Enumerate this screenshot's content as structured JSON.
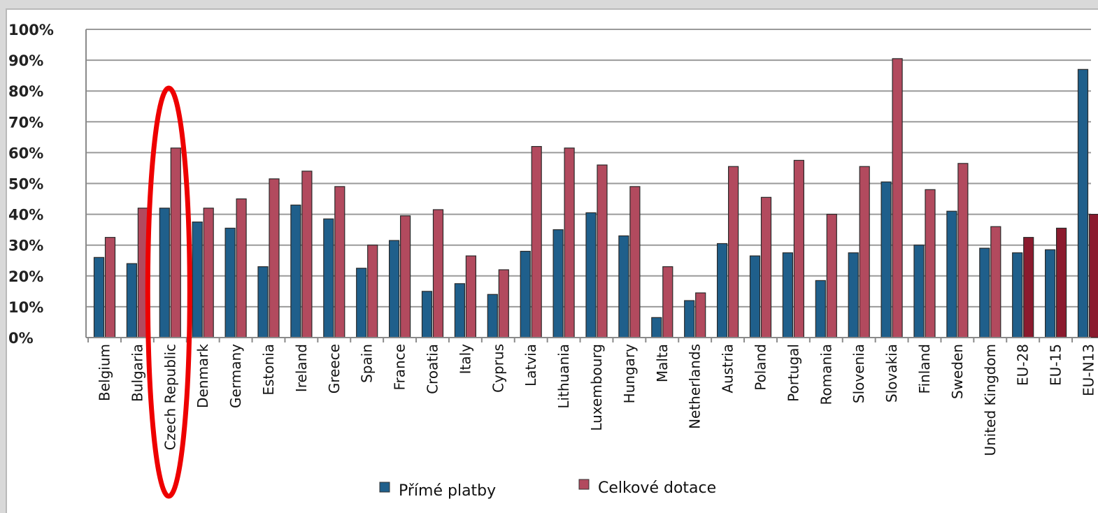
{
  "chart_data": {
    "type": "bar",
    "title": "",
    "xlabel": "",
    "ylabel": "",
    "ylim": [
      0,
      100
    ],
    "y_ticks": [
      "0%",
      "10%",
      "20%",
      "30%",
      "40%",
      "50%",
      "60%",
      "70%",
      "80%",
      "90%",
      "100%"
    ],
    "grid": true,
    "legend_position": "bottom",
    "categories": [
      "Belgium",
      "Bulgaria",
      "Czech Republic",
      "Denmark",
      "Germany",
      "Estonia",
      "Ireland",
      "Greece",
      "Spain",
      "France",
      "Croatia",
      "Italy",
      "Cyprus",
      "Latvia",
      "Lithuania",
      "Luxembourg",
      "Hungary",
      "Malta",
      "Netherlands",
      "Austria",
      "Poland",
      "Portugal",
      "Romania",
      "Slovenia",
      "Slovakia",
      "Finland",
      "Sweden",
      "United Kingdom",
      "EU-28",
      "EU-15",
      "EU-N13"
    ],
    "series": [
      {
        "name": "Přímé platby",
        "color": "#1f5f8b",
        "values": [
          26,
          24,
          42,
          37.5,
          35.5,
          23,
          43,
          38.5,
          22.5,
          31.5,
          15,
          17.5,
          14,
          28,
          35,
          40.5,
          33,
          6.5,
          12,
          30.5,
          26.5,
          27.5,
          18.5,
          27.5,
          50.5,
          30,
          41,
          29,
          27.5,
          28.5,
          87
        ]
      },
      {
        "name": "Celkové dotace",
        "color": "#b24a5e",
        "highlight_color": "#8b1a2e",
        "values": [
          32.5,
          42,
          61.5,
          42,
          45,
          51.5,
          54,
          49,
          30,
          39.5,
          41.5,
          26.5,
          22,
          62,
          61.5,
          56,
          49,
          23,
          14.5,
          55.5,
          45.5,
          57.5,
          40,
          55.5,
          90.5,
          48,
          56.5,
          36,
          32.5,
          35.5,
          40
        ]
      }
    ],
    "highlighted_categories": [
      "EU-28",
      "EU-15",
      "EU-N13"
    ],
    "annotation": {
      "type": "ellipse",
      "target_category": "Czech Republic",
      "color": "#ee0000"
    }
  }
}
